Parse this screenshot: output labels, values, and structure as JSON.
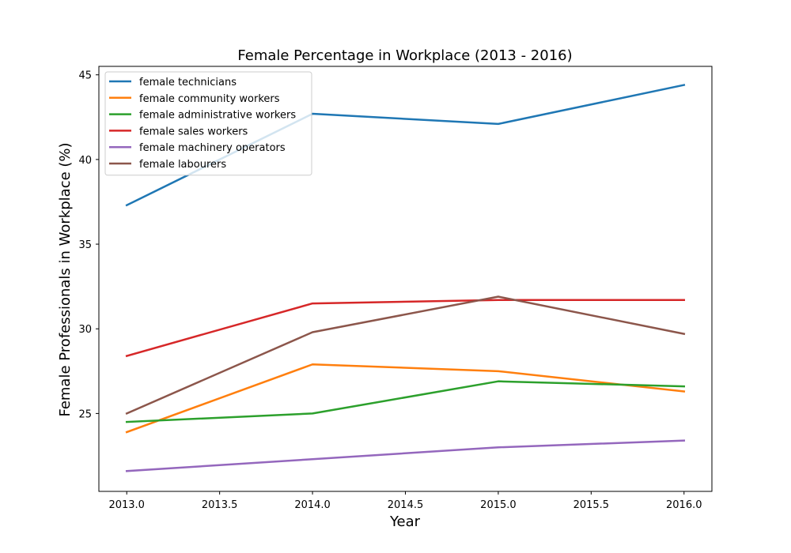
{
  "chart_data": {
    "type": "line",
    "title": "Female Percentage in Workplace (2013 - 2016)",
    "xlabel": "Year",
    "ylabel": "Female Professionals in Workplace (%)",
    "x": [
      2013,
      2014,
      2015,
      2016
    ],
    "xlim": [
      2012.85,
      2016.15
    ],
    "ylim": [
      20.4,
      45.5
    ],
    "xticks": [
      2013.0,
      2013.5,
      2014.0,
      2014.5,
      2015.0,
      2015.5,
      2016.0
    ],
    "xtick_labels": [
      "2013.0",
      "2013.5",
      "2014.0",
      "2014.5",
      "2015.0",
      "2015.5",
      "2016.0"
    ],
    "yticks": [
      25,
      30,
      35,
      40,
      45
    ],
    "ytick_labels": [
      "25",
      "30",
      "35",
      "40",
      "45"
    ],
    "grid": false,
    "legend_position": "upper-left",
    "series": [
      {
        "name": "female technicians",
        "color": "#1f77b4",
        "values": [
          37.3,
          42.7,
          42.1,
          44.4
        ]
      },
      {
        "name": "female community workers",
        "color": "#ff7f0e",
        "values": [
          23.9,
          27.9,
          27.5,
          26.3
        ]
      },
      {
        "name": "female administrative workers",
        "color": "#2ca02c",
        "values": [
          24.5,
          25.0,
          26.9,
          26.6
        ]
      },
      {
        "name": "female sales workers",
        "color": "#d62728",
        "values": [
          28.4,
          31.5,
          31.7,
          31.7
        ]
      },
      {
        "name": "female machinery operators",
        "color": "#9467bd",
        "values": [
          21.6,
          22.3,
          23.0,
          23.4
        ]
      },
      {
        "name": "female labourers",
        "color": "#8c564b",
        "values": [
          25.0,
          29.8,
          31.9,
          29.7
        ]
      }
    ]
  }
}
